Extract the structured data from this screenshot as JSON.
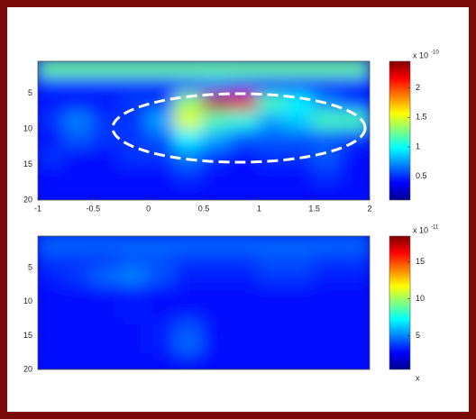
{
  "chart_data": [
    {
      "type": "heatmap",
      "colormap": "jet",
      "x": [
        -0.875,
        -0.625,
        -0.375,
        -0.125,
        0.125,
        0.375,
        0.625,
        0.875,
        1.125,
        1.375,
        1.625,
        1.875
      ],
      "y": [
        1.5,
        4,
        6.5,
        9,
        11.5,
        14,
        16.5,
        19
      ],
      "z": [
        [
          1.1,
          1.1,
          1.1,
          1.1,
          1.1,
          1.1,
          1.1,
          1.1,
          1.1,
          1.1,
          1.1,
          1.1
        ],
        [
          0.3,
          0.3,
          0.3,
          0.3,
          0.3,
          0.4,
          0.5,
          0.4,
          0.3,
          0.3,
          0.3,
          0.3
        ],
        [
          0.2,
          0.2,
          0.2,
          0.3,
          0.3,
          1.2,
          2.3,
          2.2,
          1.0,
          0.8,
          0.5,
          0.3
        ],
        [
          0.3,
          0.5,
          0.3,
          0.3,
          0.6,
          1.4,
          1.0,
          0.9,
          0.6,
          0.7,
          1.0,
          1.0
        ],
        [
          0.2,
          0.4,
          0.3,
          0.3,
          0.4,
          0.8,
          0.6,
          0.4,
          0.4,
          0.4,
          0.4,
          0.3
        ],
        [
          0.3,
          0.2,
          0.2,
          0.3,
          0.3,
          0.5,
          0.3,
          0.2,
          0.3,
          0.3,
          0.4,
          0.2
        ],
        [
          0.2,
          0.2,
          0.2,
          0.2,
          0.2,
          0.3,
          0.2,
          0.2,
          0.2,
          0.2,
          0.3,
          0.2
        ],
        [
          0.2,
          0.2,
          0.2,
          0.2,
          0.2,
          0.2,
          0.2,
          0.2,
          0.2,
          0.2,
          0.2,
          0.2
        ]
      ],
      "xlim": [
        -1,
        2
      ],
      "ylim": [
        0.5,
        20
      ],
      "y_reversed": true,
      "xticks": [
        -1,
        -0.5,
        0,
        0.5,
        1,
        1.5,
        2
      ],
      "yticks": [
        5,
        10,
        15,
        20
      ],
      "clim": [
        0.1,
        2.45
      ],
      "cticks": [
        0.5,
        1,
        1.5,
        2
      ],
      "colorbar_label": "x 10",
      "colorbar_exponent": "-10"
    },
    {
      "type": "heatmap",
      "colormap": "jet",
      "x": [
        -0.875,
        -0.625,
        -0.375,
        -0.125,
        0.125,
        0.375,
        0.625,
        0.875,
        1.125,
        1.375,
        1.625,
        1.875
      ],
      "y": [
        1.5,
        4,
        6.5,
        9,
        11.5,
        14,
        16.5,
        19
      ],
      "z": [
        [
          3,
          3,
          3,
          3,
          3,
          3,
          3,
          3,
          3,
          3,
          3,
          3
        ],
        [
          2,
          2,
          2,
          2.5,
          2.5,
          2,
          2,
          2,
          2.5,
          2.5,
          2,
          2
        ],
        [
          1.5,
          2,
          3,
          3.5,
          2.5,
          1.5,
          1.5,
          1.5,
          2,
          2,
          1.5,
          1.5
        ],
        [
          1.2,
          1.2,
          1.2,
          1.2,
          1.2,
          1.2,
          1.2,
          1.2,
          1.2,
          1.2,
          1.2,
          1.2
        ],
        [
          1.2,
          1.2,
          1.2,
          1.5,
          1.2,
          1.2,
          1.2,
          1.2,
          1.2,
          1.2,
          1.2,
          1.2
        ],
        [
          1.2,
          1.2,
          1.2,
          1.2,
          1.5,
          2.5,
          1.2,
          1.2,
          1.2,
          1.2,
          1.2,
          1.2
        ],
        [
          1.2,
          1.2,
          1.2,
          1.2,
          1.5,
          3,
          1.2,
          1.2,
          1.2,
          1.2,
          1.2,
          1.2
        ],
        [
          1.2,
          1.2,
          1.2,
          1.2,
          1.2,
          1.5,
          1.2,
          1.2,
          1.2,
          1.2,
          1.2,
          1.2
        ]
      ],
      "xlim": [
        -1,
        2
      ],
      "ylim": [
        0.3,
        20
      ],
      "y_reversed": true,
      "yticks": [
        5,
        10,
        15,
        20
      ],
      "clim": [
        0.4,
        18.5
      ],
      "cticks": [
        5,
        10,
        15
      ],
      "colorbar_label": "x 10",
      "colorbar_exponent": "-11",
      "colorbar_bottom_label": "x"
    }
  ]
}
